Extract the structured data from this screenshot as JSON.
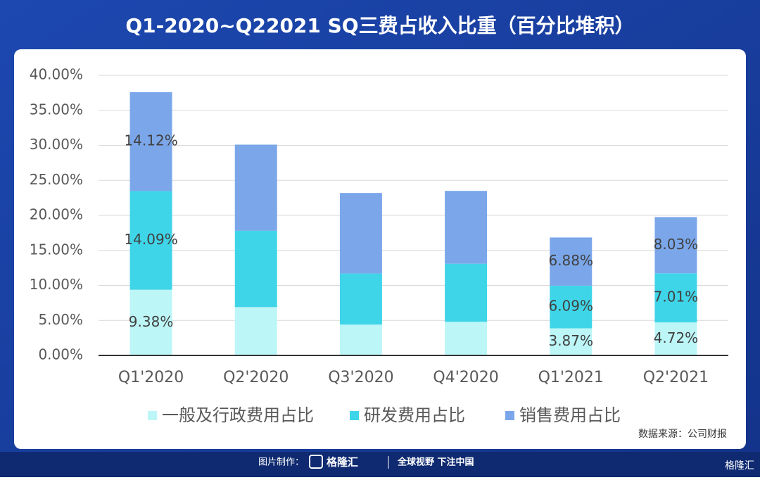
{
  "chart_data": {
    "type": "stacked-bar",
    "title": "Q1-2020~Q22021 SQ三费占收入比重（百分比堆积）",
    "source": "数据来源：公司财报",
    "categories": [
      "Q1'2020",
      "Q2'2020",
      "Q3'2020",
      "Q4'2020",
      "Q1'2021",
      "Q2'2021"
    ],
    "series": [
      {
        "name": "一般及行政费用占比",
        "color": "#bdf6f7",
        "values": [
          9.38,
          6.9,
          4.4,
          4.8,
          3.87,
          4.72
        ],
        "value_labels": [
          "9.38%",
          null,
          null,
          null,
          "3.87%",
          "4.72%"
        ]
      },
      {
        "name": "研发费用占比",
        "color": "#3fd5e8",
        "values": [
          14.09,
          10.9,
          7.3,
          8.3,
          6.09,
          7.01
        ],
        "value_labels": [
          "14.09%",
          null,
          null,
          null,
          "6.09%",
          "7.01%"
        ]
      },
      {
        "name": "销售费用占比",
        "color": "#7ba7ea",
        "values": [
          14.12,
          12.3,
          11.5,
          10.4,
          6.88,
          8.03
        ],
        "value_labels": [
          "14.12%",
          null,
          null,
          null,
          "6.88%",
          "8.03%"
        ]
      }
    ],
    "ylim": [
      0,
      40
    ],
    "yticks": [
      {
        "value": 0,
        "label": "0.00%"
      },
      {
        "value": 5,
        "label": "5.00%"
      },
      {
        "value": 10,
        "label": "10.00%"
      },
      {
        "value": 15,
        "label": "15.00%"
      },
      {
        "value": 20,
        "label": "20.00%"
      },
      {
        "value": 25,
        "label": "25.00%"
      },
      {
        "value": 30,
        "label": "30.00%"
      },
      {
        "value": 35,
        "label": "35.00%"
      },
      {
        "value": 40,
        "label": "40.00%"
      }
    ],
    "grid": true
  },
  "footer": {
    "made_by": "图片制作：",
    "brand": "格隆汇",
    "slogan": "全球视野 下注中国",
    "corner_brand": "格隆汇"
  }
}
